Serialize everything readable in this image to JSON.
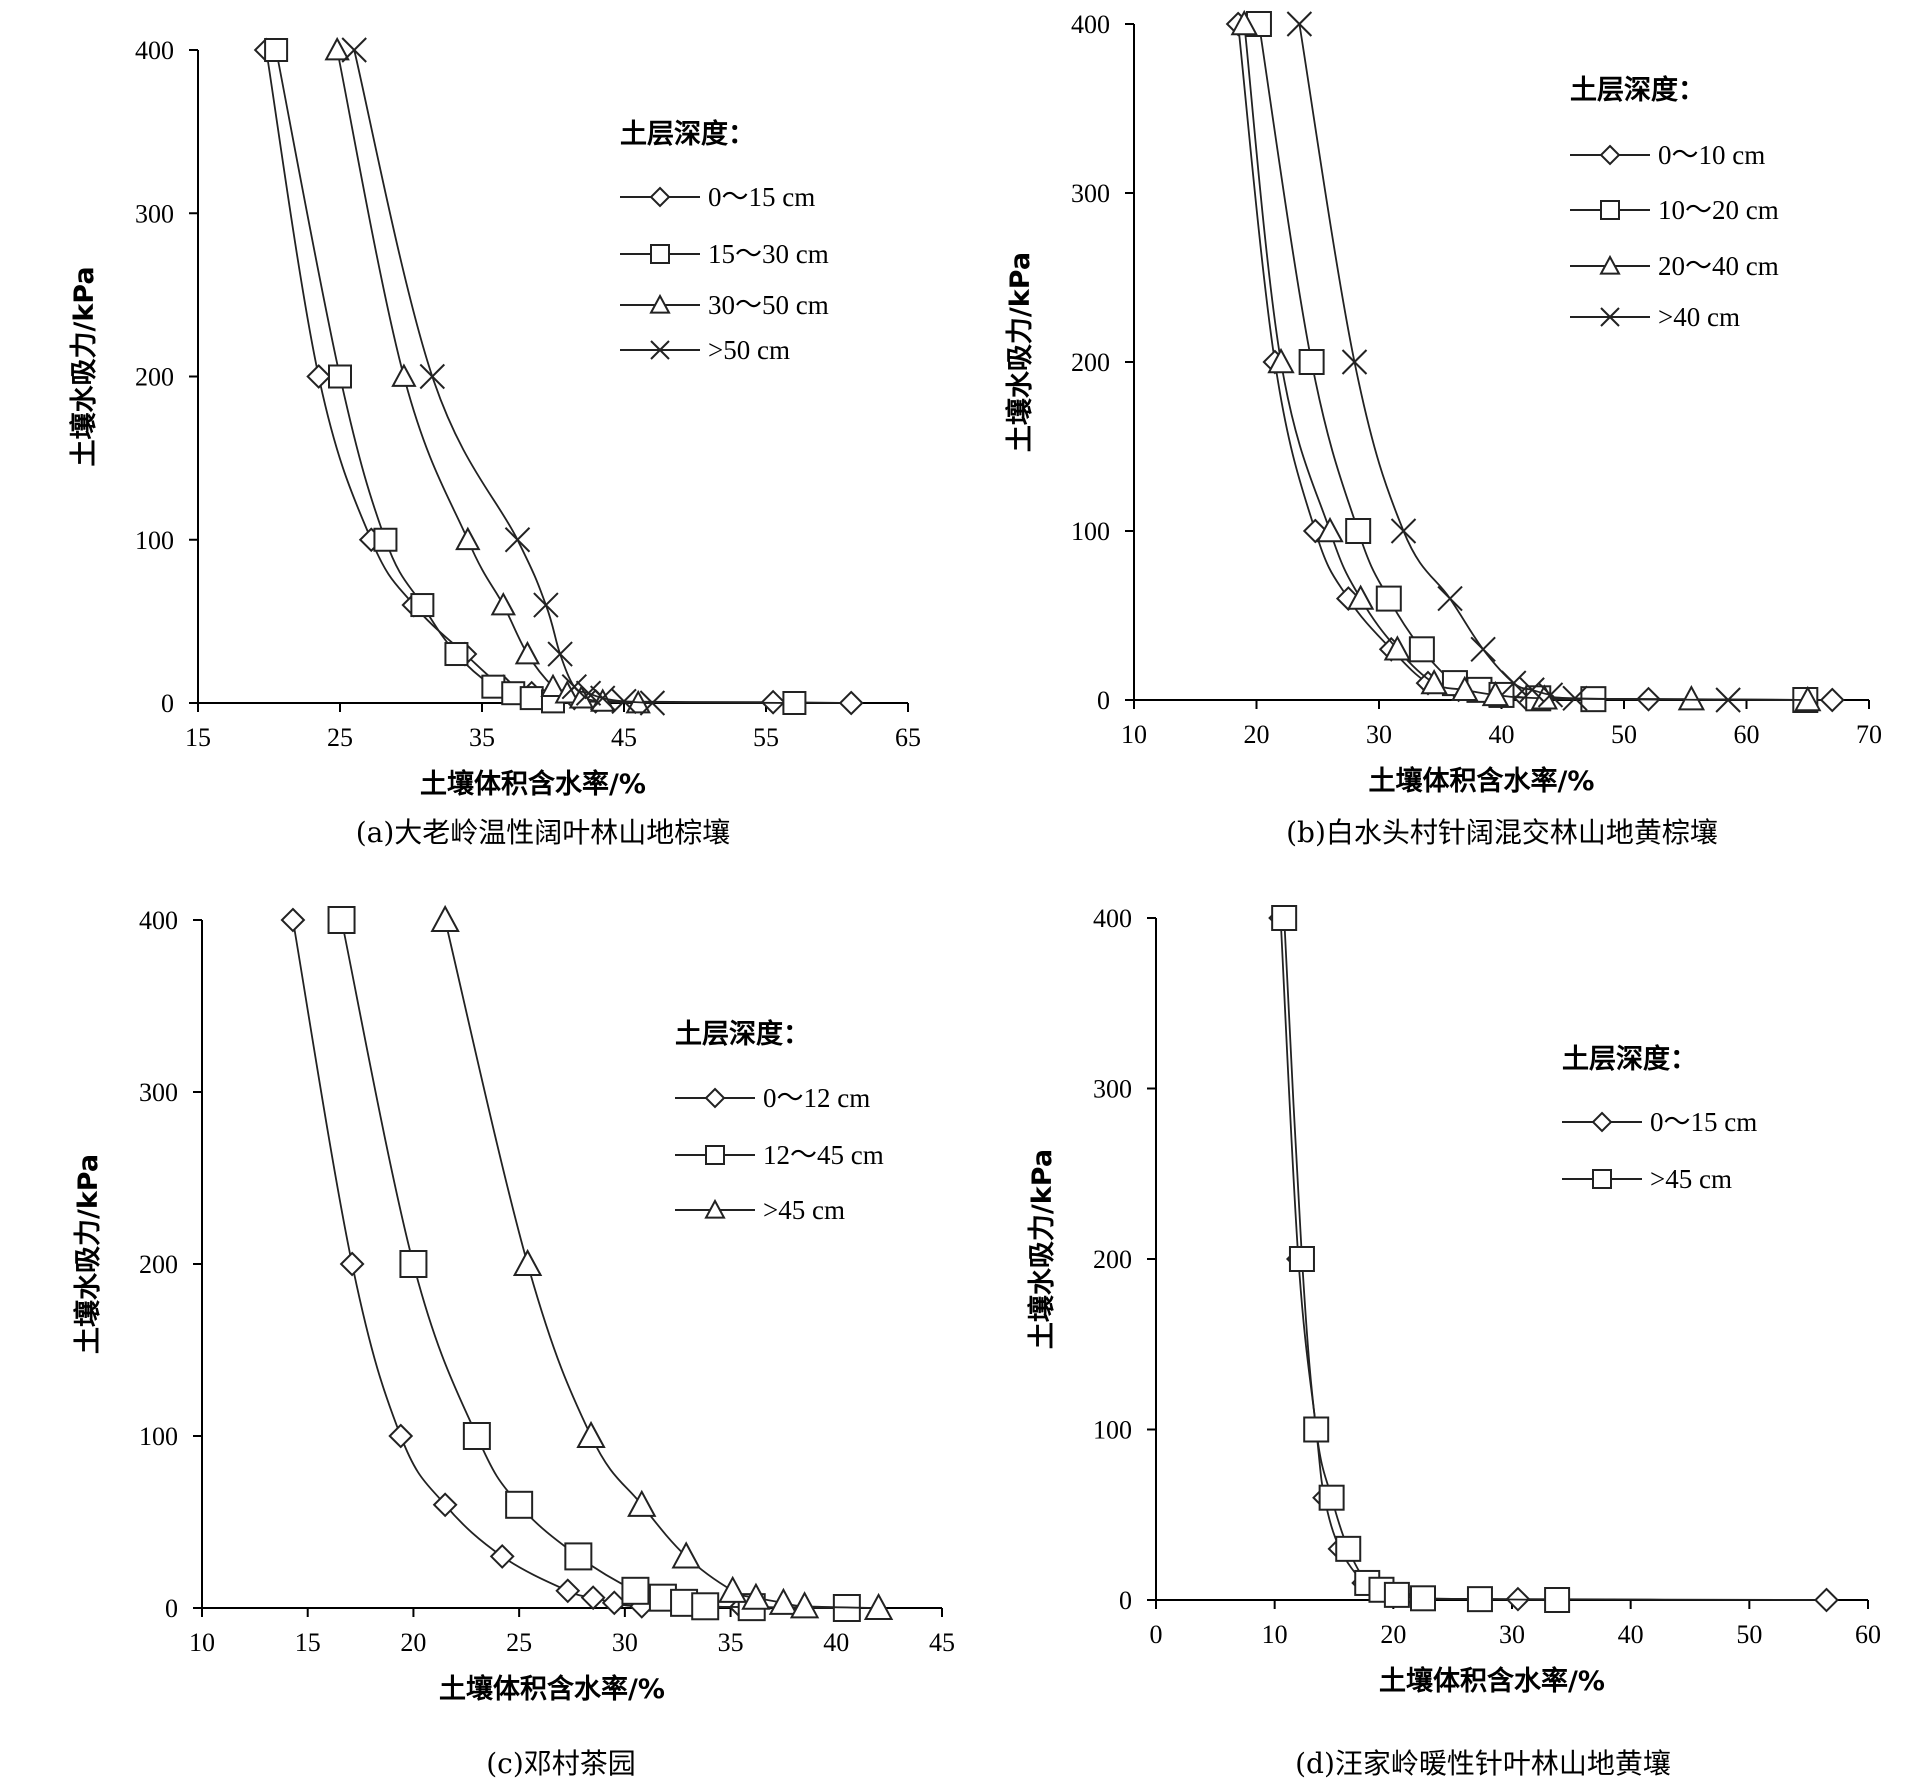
{
  "chart_data": [
    {
      "type": "line",
      "caption": "(a)大老岭温性阔叶林山地棕壤",
      "xlabel": "土壤体积含水率/%",
      "ylabel": "土壤水吸力/kPa",
      "xlim": [
        15,
        65
      ],
      "ylim": [
        0,
        400
      ],
      "xticks": [
        15,
        25,
        35,
        45,
        55,
        65
      ],
      "yticks": [
        0,
        100,
        200,
        300,
        400
      ],
      "legend_title": "土层深度：",
      "series": [
        {
          "name": "0～15 cm",
          "marker": "diamond",
          "points": [
            [
              19.8,
              400
            ],
            [
              23.5,
              200
            ],
            [
              27.2,
              100
            ],
            [
              30.2,
              60
            ],
            [
              33.8,
              30
            ],
            [
              36.5,
              10
            ],
            [
              38.5,
              6
            ],
            [
              41.5,
              3
            ],
            [
              43,
              1
            ],
            [
              55.5,
              0.5
            ],
            [
              61,
              0
            ]
          ]
        },
        {
          "name": "15～30 cm",
          "marker": "square",
          "points": [
            [
              20.5,
              400
            ],
            [
              25,
              200
            ],
            [
              28.2,
              100
            ],
            [
              30.8,
              60
            ],
            [
              33.2,
              30
            ],
            [
              35.8,
              10
            ],
            [
              37.2,
              6
            ],
            [
              38.5,
              3
            ],
            [
              40,
              1
            ],
            [
              57,
              0
            ]
          ]
        },
        {
          "name": "30～50 cm",
          "marker": "triangle",
          "points": [
            [
              24.8,
              400
            ],
            [
              29.5,
              200
            ],
            [
              34,
              100
            ],
            [
              36.5,
              60
            ],
            [
              38.2,
              30
            ],
            [
              40,
              10
            ],
            [
              41,
              6
            ],
            [
              42,
              3
            ],
            [
              43.5,
              1
            ],
            [
              46,
              0
            ]
          ]
        },
        {
          "name": ">50 cm",
          "marker": "x",
          "points": [
            [
              26,
              400
            ],
            [
              31.5,
              200
            ],
            [
              37.5,
              100
            ],
            [
              39.5,
              60
            ],
            [
              40.5,
              30
            ],
            [
              41.5,
              10
            ],
            [
              42.5,
              6
            ],
            [
              43.5,
              3
            ],
            [
              45,
              1
            ],
            [
              47,
              0
            ]
          ]
        }
      ]
    },
    {
      "type": "line",
      "caption": "(b)白水头村针阔混交林山地黄棕壤",
      "xlabel": "土壤体积含水率/%",
      "ylabel": "土壤水吸力/kPa",
      "xlim": [
        10,
        70
      ],
      "ylim": [
        0,
        400
      ],
      "xticks": [
        10,
        20,
        30,
        40,
        50,
        60,
        70
      ],
      "yticks": [
        0,
        100,
        200,
        300,
        400
      ],
      "legend_title": "土层深度：",
      "series": [
        {
          "name": "0～10 cm",
          "marker": "diamond",
          "points": [
            [
              18.5,
              400
            ],
            [
              21.5,
              200
            ],
            [
              24.8,
              100
            ],
            [
              27.5,
              60
            ],
            [
              31,
              30
            ],
            [
              34,
              10
            ],
            [
              36.5,
              6
            ],
            [
              39,
              3
            ],
            [
              42,
              1
            ],
            [
              52,
              0.5
            ],
            [
              67,
              0
            ]
          ]
        },
        {
          "name": "10～20 cm",
          "marker": "square",
          "points": [
            [
              20.2,
              400
            ],
            [
              24.5,
              200
            ],
            [
              28.3,
              100
            ],
            [
              30.8,
              60
            ],
            [
              33.5,
              30
            ],
            [
              36.2,
              10
            ],
            [
              38.2,
              6
            ],
            [
              40,
              3
            ],
            [
              43,
              1
            ],
            [
              47.5,
              0.5
            ],
            [
              64.8,
              0
            ]
          ]
        },
        {
          "name": "20～40 cm",
          "marker": "triangle",
          "points": [
            [
              19,
              400
            ],
            [
              22,
              200
            ],
            [
              26,
              100
            ],
            [
              28.5,
              60
            ],
            [
              31.5,
              30
            ],
            [
              34.5,
              10
            ],
            [
              37,
              6
            ],
            [
              39.5,
              3
            ],
            [
              43.5,
              1
            ],
            [
              55.5,
              0.5
            ],
            [
              65,
              0
            ]
          ]
        },
        {
          "name": ">40 cm",
          "marker": "x",
          "points": [
            [
              23.5,
              400
            ],
            [
              28,
              200
            ],
            [
              32,
              100
            ],
            [
              35.8,
              60
            ],
            [
              38.5,
              30
            ],
            [
              41,
              10
            ],
            [
              42.5,
              6
            ],
            [
              44,
              3
            ],
            [
              46,
              1
            ],
            [
              58.5,
              0
            ]
          ]
        }
      ]
    },
    {
      "type": "line",
      "caption": "(c)邓村茶园",
      "xlabel": "土壤体积含水率/%",
      "ylabel": "土壤水吸力/kPa",
      "xlim": [
        10,
        45
      ],
      "ylim": [
        0,
        400
      ],
      "xticks": [
        10,
        15,
        20,
        25,
        30,
        35,
        40,
        45
      ],
      "yticks": [
        0,
        100,
        200,
        300,
        400
      ],
      "legend_title": "土层深度：",
      "series": [
        {
          "name": "0～12 cm",
          "marker": "diamond",
          "points": [
            [
              14.3,
              400
            ],
            [
              17.1,
              200
            ],
            [
              19.4,
              100
            ],
            [
              21.5,
              60
            ],
            [
              24.2,
              30
            ],
            [
              27.3,
              10
            ],
            [
              28.5,
              6
            ],
            [
              29.5,
              3
            ],
            [
              30.8,
              1
            ],
            [
              35.5,
              0.5
            ],
            [
              40.5,
              0
            ]
          ]
        },
        {
          "name": "12～45 cm",
          "marker": "square",
          "points": [
            [
              16.6,
              400
            ],
            [
              20,
              200
            ],
            [
              23,
              100
            ],
            [
              25,
              60
            ],
            [
              27.8,
              30
            ],
            [
              30.5,
              10
            ],
            [
              31.8,
              6
            ],
            [
              32.8,
              3
            ],
            [
              33.8,
              1
            ],
            [
              36,
              0.5
            ],
            [
              40.5,
              0
            ]
          ]
        },
        {
          "name": ">45 cm",
          "marker": "triangle",
          "points": [
            [
              21.5,
              400
            ],
            [
              25.4,
              200
            ],
            [
              28.4,
              100
            ],
            [
              30.8,
              60
            ],
            [
              32.9,
              30
            ],
            [
              35.1,
              10
            ],
            [
              36.2,
              6
            ],
            [
              37.5,
              3
            ],
            [
              38.5,
              1
            ],
            [
              42,
              0
            ]
          ]
        }
      ]
    },
    {
      "type": "line",
      "caption": "(d)汪家岭暖性针叶林山地黄壤",
      "xlabel": "土壤体积含水率/%",
      "ylabel": "土壤水吸力/kPa",
      "xlim": [
        0,
        60
      ],
      "ylim": [
        0,
        400
      ],
      "xticks": [
        0,
        10,
        20,
        30,
        40,
        50,
        60
      ],
      "yticks": [
        0,
        100,
        200,
        300,
        400
      ],
      "legend_title": "土层深度：",
      "series": [
        {
          "name": "0～15 cm",
          "marker": "diamond",
          "points": [
            [
              10.5,
              400
            ],
            [
              12,
              200
            ],
            [
              13.5,
              100
            ],
            [
              14.2,
              60
            ],
            [
              15.5,
              30
            ],
            [
              17.5,
              10
            ],
            [
              18.5,
              6
            ],
            [
              20,
              3
            ],
            [
              22,
              1
            ],
            [
              30.5,
              0.5
            ],
            [
              56.5,
              0
            ]
          ]
        },
        {
          "name": ">45 cm",
          "marker": "square",
          "points": [
            [
              10.8,
              400
            ],
            [
              12.3,
              200
            ],
            [
              13.5,
              100
            ],
            [
              14.8,
              60
            ],
            [
              16.2,
              30
            ],
            [
              17.8,
              10
            ],
            [
              19,
              6
            ],
            [
              20.3,
              3
            ],
            [
              22.5,
              1
            ],
            [
              27.3,
              0.5
            ],
            [
              33.8,
              0
            ]
          ]
        }
      ]
    }
  ]
}
